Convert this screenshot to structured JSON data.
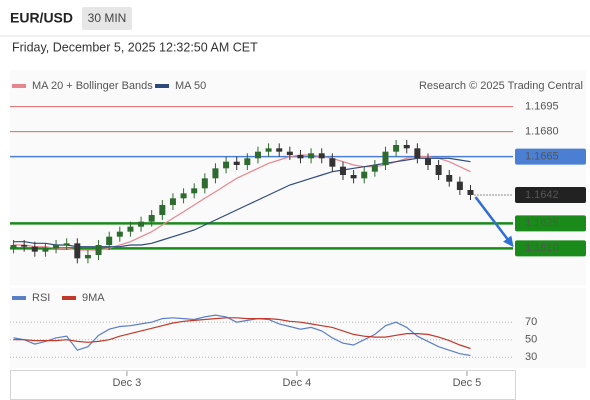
{
  "header": {
    "symbol": "EUR/USD",
    "interval": "30 MIN",
    "timestamp": "Friday, December 5, 2025 12:32:50 AM CET"
  },
  "chart_data": [
    {
      "type": "candlestick",
      "source": "Research © 2025 Trading Central",
      "up_color": "#2e6b2e",
      "down_color": "#333333",
      "x": [
        1,
        4,
        7,
        10,
        13,
        16,
        19,
        22,
        25,
        28,
        31,
        34,
        37,
        40,
        43,
        46,
        49,
        52,
        55,
        58,
        61,
        64,
        67,
        70,
        73,
        76,
        79,
        82,
        85,
        88,
        91,
        94,
        97,
        100,
        103,
        106,
        109,
        112,
        115,
        118,
        121,
        124,
        127,
        130
      ],
      "open": [
        1.161,
        1.1612,
        1.1611,
        1.1608,
        1.161,
        1.1612,
        1.1613,
        1.1604,
        1.1606,
        1.1612,
        1.1617,
        1.162,
        1.1623,
        1.1626,
        1.163,
        1.1636,
        1.164,
        1.1643,
        1.1646,
        1.1652,
        1.1658,
        1.1662,
        1.166,
        1.1664,
        1.1668,
        1.167,
        1.1668,
        1.1666,
        1.1664,
        1.1667,
        1.1664,
        1.1659,
        1.1654,
        1.1652,
        1.1656,
        1.166,
        1.1668,
        1.1672,
        1.167,
        1.1664,
        1.166,
        1.1654,
        1.165,
        1.1645
      ],
      "high": [
        1.1615,
        1.1615,
        1.1614,
        1.1613,
        1.1615,
        1.1616,
        1.1616,
        1.1609,
        1.1615,
        1.162,
        1.1623,
        1.1626,
        1.1629,
        1.1633,
        1.1639,
        1.1643,
        1.1646,
        1.1649,
        1.1655,
        1.1661,
        1.1665,
        1.1665,
        1.1667,
        1.1671,
        1.1673,
        1.1673,
        1.1671,
        1.1669,
        1.167,
        1.167,
        1.1667,
        1.1662,
        1.1657,
        1.1659,
        1.1663,
        1.1671,
        1.1675,
        1.1675,
        1.1673,
        1.1667,
        1.1663,
        1.1657,
        1.1653,
        1.1648
      ],
      "low": [
        1.1607,
        1.1608,
        1.1605,
        1.1605,
        1.1607,
        1.1609,
        1.1601,
        1.1601,
        1.1603,
        1.1609,
        1.1614,
        1.1617,
        1.162,
        1.1623,
        1.1627,
        1.1633,
        1.1637,
        1.164,
        1.1643,
        1.1649,
        1.1655,
        1.1657,
        1.1657,
        1.1661,
        1.1665,
        1.1665,
        1.1663,
        1.1661,
        1.1661,
        1.1661,
        1.1656,
        1.1651,
        1.1649,
        1.1649,
        1.1653,
        1.1657,
        1.1665,
        1.1667,
        1.1661,
        1.1657,
        1.1651,
        1.1647,
        1.1642,
        1.1639
      ],
      "close": [
        1.1612,
        1.1611,
        1.1608,
        1.161,
        1.1612,
        1.1613,
        1.1604,
        1.1606,
        1.1612,
        1.1617,
        1.162,
        1.1623,
        1.1626,
        1.163,
        1.1636,
        1.164,
        1.1643,
        1.1646,
        1.1652,
        1.1658,
        1.1662,
        1.166,
        1.1664,
        1.1668,
        1.167,
        1.1668,
        1.1666,
        1.1664,
        1.1667,
        1.1664,
        1.1659,
        1.1654,
        1.1652,
        1.1656,
        1.166,
        1.1668,
        1.1672,
        1.167,
        1.1664,
        1.166,
        1.1654,
        1.165,
        1.1645,
        1.1642
      ],
      "series": [
        {
          "name": "MA 20 + Bollinger Bands",
          "color": "#e8868f",
          "values": [
            1.1612,
            1.1612,
            1.1611,
            1.1611,
            1.161,
            1.161,
            1.1609,
            1.1609,
            1.1609,
            1.161,
            1.1612,
            1.1614,
            1.1617,
            1.162,
            1.1624,
            1.1628,
            1.1632,
            1.1636,
            1.164,
            1.1644,
            1.1648,
            1.1652,
            1.1655,
            1.1658,
            1.1661,
            1.1663,
            1.1665,
            1.1666,
            1.1666,
            1.1665,
            1.1664,
            1.1662,
            1.166,
            1.1659,
            1.1659,
            1.166,
            1.1662,
            1.1664,
            1.1665,
            1.1665,
            1.1664,
            1.1662,
            1.1659,
            1.1656
          ]
        },
        {
          "name": "MA 50",
          "color": "#2e4a7d",
          "values": [
            1.1614,
            1.1614,
            1.1613,
            1.1613,
            1.1612,
            1.1612,
            1.1611,
            1.1611,
            1.1611,
            1.1611,
            1.1611,
            1.1612,
            1.1612,
            1.1613,
            1.1615,
            1.1617,
            1.1619,
            1.1621,
            1.1624,
            1.1627,
            1.163,
            1.1633,
            1.1636,
            1.1639,
            1.1642,
            1.1645,
            1.1648,
            1.165,
            1.1652,
            1.1654,
            1.1656,
            1.1657,
            1.1658,
            1.1659,
            1.166,
            1.1661,
            1.1662,
            1.1663,
            1.1664,
            1.1664,
            1.1664,
            1.1664,
            1.1663,
            1.1662
          ]
        }
      ],
      "levels": [
        {
          "value": 1.1695,
          "label": "1.1695",
          "color": "#d9534f",
          "boxed": false,
          "line": "solid"
        },
        {
          "value": 1.168,
          "label": "1.1680",
          "color": "#d9534f",
          "boxed": false,
          "line": "solid"
        },
        {
          "value": 1.1665,
          "label": "1.1665",
          "color": "#4a7fd4",
          "boxed": true,
          "line": "solid"
        },
        {
          "value": 1.1642,
          "label": "1.1642",
          "color": "#222222",
          "boxed": true,
          "line": "dotted"
        },
        {
          "value": 1.1625,
          "label": "1.1625",
          "color": "#1a8a1a",
          "boxed": true,
          "line": "thick"
        },
        {
          "value": 1.161,
          "label": "1.1610",
          "color": "#1a8a1a",
          "boxed": true,
          "line": "thick"
        }
      ],
      "xlim": [
        0,
        142
      ],
      "ylim": [
        1.1591,
        1.1702
      ]
    },
    {
      "type": "line",
      "x": [
        1,
        4,
        7,
        10,
        13,
        16,
        19,
        22,
        25,
        28,
        31,
        34,
        37,
        40,
        43,
        46,
        49,
        52,
        55,
        58,
        61,
        64,
        67,
        70,
        73,
        76,
        79,
        82,
        85,
        88,
        91,
        94,
        97,
        100,
        103,
        106,
        109,
        112,
        115,
        118,
        121,
        124,
        127,
        130
      ],
      "series": [
        {
          "name": "RSI",
          "color": "#5b7fc7",
          "values": [
            52,
            50,
            45,
            48,
            52,
            54,
            38,
            42,
            55,
            62,
            65,
            66,
            68,
            70,
            74,
            75,
            74,
            73,
            76,
            78,
            76,
            70,
            72,
            74,
            73,
            68,
            65,
            62,
            64,
            60,
            52,
            46,
            44,
            50,
            56,
            66,
            70,
            64,
            54,
            48,
            42,
            38,
            34,
            32
          ]
        },
        {
          "name": "9MA",
          "color": "#c0392b",
          "values": [
            50,
            50,
            49,
            49,
            49,
            50,
            48,
            47,
            48,
            50,
            54,
            57,
            60,
            63,
            66,
            69,
            71,
            72,
            73,
            74,
            75,
            75,
            74,
            74,
            74,
            73,
            71,
            70,
            68,
            66,
            64,
            60,
            56,
            54,
            53,
            53,
            55,
            57,
            57,
            56,
            53,
            49,
            44,
            40
          ]
        }
      ],
      "xlim": [
        0,
        142
      ],
      "xticks": [
        {
          "value": 33,
          "label": "Dec 3"
        },
        {
          "value": 81,
          "label": "Dec 4"
        },
        {
          "value": 129,
          "label": "Dec 5"
        }
      ],
      "ylim": [
        20,
        85
      ],
      "yticks": [
        30,
        50,
        70
      ],
      "grid": true
    }
  ]
}
